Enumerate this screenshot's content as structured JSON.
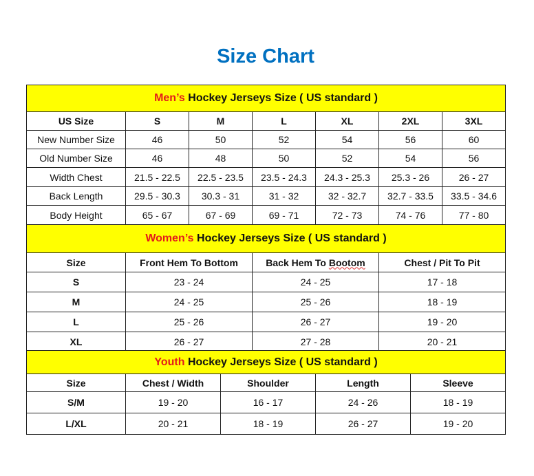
{
  "title": "Size Chart",
  "colors": {
    "title": "#0070C0",
    "header_bg": "#FFFF00",
    "highlight": "#E31B1B"
  },
  "men": {
    "heading_highlight": "Men’s",
    "heading_rest": " Hockey Jerseys Size ( US standard )",
    "columns": [
      "US Size",
      "S",
      "M",
      "L",
      "XL",
      "2XL",
      "3XL"
    ],
    "rows": [
      [
        "New Number Size",
        "46",
        "50",
        "52",
        "54",
        "56",
        "60"
      ],
      [
        "Old Number Size",
        "46",
        "48",
        "50",
        "52",
        "54",
        "56"
      ],
      [
        "Width Chest",
        "21.5 - 22.5",
        "22.5 - 23.5",
        "23.5 - 24.3",
        "24.3 - 25.3",
        "25.3 - 26",
        "26 - 27"
      ],
      [
        "Back Length",
        "29.5 - 30.3",
        "30.3 - 31",
        "31 - 32",
        "32 - 32.7",
        "32.7 - 33.5",
        "33.5 - 34.6"
      ],
      [
        "Body Height",
        "65 - 67",
        "67 - 69",
        "69 - 71",
        "72 - 73",
        "74 - 76",
        "77 - 80"
      ]
    ]
  },
  "women": {
    "heading_highlight": "Women’s",
    "heading_rest": " Hockey Jerseys Size ( US standard )",
    "columns": [
      "Size",
      "Front Hem To Bottom",
      "Back Hem To Bootom",
      "Chest / Pit To Pit"
    ],
    "rows": [
      [
        "S",
        "23 - 24",
        "24 - 25",
        "17 - 18"
      ],
      [
        "M",
        "24 - 25",
        "25 - 26",
        "18 - 19"
      ],
      [
        "L",
        "25 - 26",
        "26 - 27",
        "19 - 20"
      ],
      [
        "XL",
        "26 - 27",
        "27 - 28",
        "20 - 21"
      ]
    ]
  },
  "youth": {
    "heading_highlight": "Youth",
    "heading_rest": " Hockey Jerseys Size ( US standard )",
    "columns": [
      "Size",
      "Chest / Width",
      "Shoulder",
      "Length",
      "Sleeve"
    ],
    "rows": [
      [
        "S/M",
        "19 - 20",
        "16 - 17",
        "24 - 26",
        "18 - 19"
      ],
      [
        "L/XL",
        "20 - 21",
        "18 - 19",
        "26 - 27",
        "19 - 20"
      ]
    ]
  }
}
